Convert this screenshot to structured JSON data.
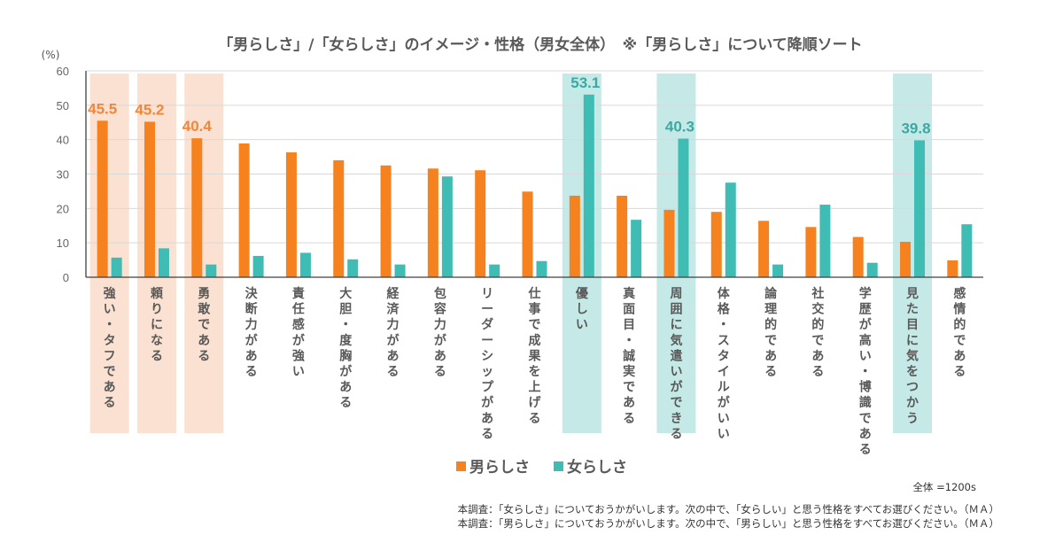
{
  "chart_data": {
    "type": "bar",
    "title": "「男らしさ」/「女らしさ」のイメージ・性格（男女全体）　※「男らしさ」について降順ソート",
    "ylabel": "(%)",
    "xlabel": "",
    "ylim": [
      0,
      60
    ],
    "yticks": [
      0,
      10,
      20,
      30,
      40,
      50,
      60
    ],
    "grid": true,
    "legend_position": "bottom",
    "categories": [
      "強い・タフである",
      "頼りになる",
      "勇敢である",
      "決断力がある",
      "責任感が強い",
      "大胆・度胸がある",
      "経済力がある",
      "包容力がある",
      "リーダーシップがある",
      "仕事で成果を上げる",
      "優しい",
      "真面目・誠実である",
      "周囲に気遣いができる",
      "体格・スタイルがいい",
      "論理的である",
      "社交的である",
      "学歴が高い・博識である",
      "見た目に気をつかう",
      "感情的である"
    ],
    "series": [
      {
        "name": "男らしさ",
        "color": "#f5821f",
        "values": [
          45.5,
          45.2,
          40.4,
          38.9,
          36.3,
          34.0,
          32.5,
          31.6,
          31.1,
          24.9,
          23.7,
          23.7,
          19.6,
          19.0,
          16.4,
          14.6,
          11.7,
          10.3,
          4.9
        ]
      },
      {
        "name": "女らしさ",
        "color": "#3fbcb4",
        "values": [
          5.7,
          8.4,
          3.7,
          6.2,
          7.1,
          5.2,
          3.7,
          29.3,
          3.7,
          4.7,
          53.1,
          16.7,
          40.3,
          27.5,
          3.7,
          21.1,
          4.2,
          39.8,
          15.4
        ]
      }
    ],
    "highlights": [
      {
        "category_index": 0,
        "series": "男らしさ",
        "label": "45.5",
        "bg": "#fbe1d1"
      },
      {
        "category_index": 1,
        "series": "男らしさ",
        "label": "45.2",
        "bg": "#fbe1d1"
      },
      {
        "category_index": 2,
        "series": "男らしさ",
        "label": "40.4",
        "bg": "#fbe1d1"
      },
      {
        "category_index": 10,
        "series": "女らしさ",
        "label": "53.1",
        "bg": "#c5e9e7"
      },
      {
        "category_index": 12,
        "series": "女らしさ",
        "label": "40.3",
        "bg": "#c5e9e7"
      },
      {
        "category_index": 17,
        "series": "女らしさ",
        "label": "39.8",
        "bg": "#c5e9e7"
      }
    ],
    "label_colors": {
      "男らしさ": "#f0873a",
      "女らしさ": "#3aa9a2"
    }
  },
  "notes": {
    "sample": "全体 =1200s",
    "q1": "本調査：「女らしさ」についておうかがいします。次の中で、「女らしい」と思う性格をすべてお選びください。（ＭＡ）",
    "q2": "本調査：「男らしさ」についておうかがいします。次の中で、「男らしい」と思う性格をすべてお選びください。（ＭＡ）"
  }
}
